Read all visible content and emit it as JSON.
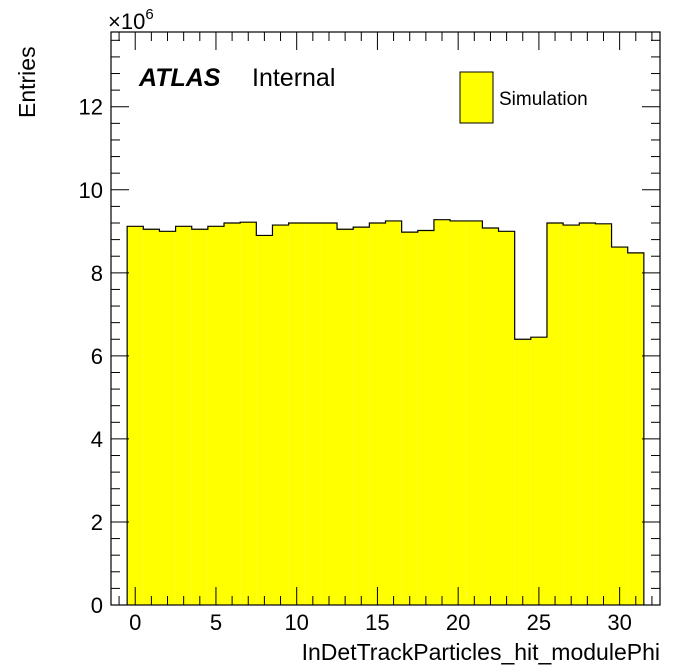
{
  "chart_data": {
    "type": "bar",
    "xlabel": "InDetTrackParticles_hit_modulePhi",
    "ylabel": "Entries",
    "y_multiplier": "×10",
    "y_multiplier_exp": "6",
    "x_ticks": [
      0,
      5,
      10,
      15,
      20,
      25,
      30
    ],
    "x_tick_labels": [
      "0",
      "5",
      "10",
      "15",
      "20",
      "25",
      "30"
    ],
    "y_ticks": [
      0,
      2,
      4,
      6,
      8,
      10,
      12
    ],
    "y_tick_labels": [
      "0",
      "2",
      "4",
      "6",
      "8",
      "10",
      "12"
    ],
    "xlim": [
      -1.5,
      32.5
    ],
    "ylim": [
      0,
      13.8
    ],
    "bin_width": 1,
    "categories": [
      0,
      1,
      2,
      3,
      4,
      5,
      6,
      7,
      8,
      9,
      10,
      11,
      12,
      13,
      14,
      15,
      16,
      17,
      18,
      19,
      20,
      21,
      22,
      23,
      24,
      25,
      26,
      27,
      28,
      29,
      30,
      31
    ],
    "series": [
      {
        "name": "Simulation",
        "values": [
          9.12,
          9.05,
          9.0,
          9.12,
          9.05,
          9.12,
          9.2,
          9.22,
          8.9,
          9.15,
          9.2,
          9.2,
          9.2,
          9.05,
          9.1,
          9.2,
          9.25,
          8.98,
          9.02,
          9.28,
          9.25,
          9.25,
          9.08,
          9.0,
          6.4,
          6.45,
          9.2,
          9.15,
          9.2,
          9.18,
          8.62,
          8.48
        ]
      }
    ],
    "fill_color": "#ffff00",
    "line_color": "#000000",
    "grid": false,
    "legend_position": "top-right"
  },
  "annotations": {
    "atlas_label": "ATLAS",
    "internal_label": "Internal"
  },
  "legend": {
    "entry_label": "Simulation"
  }
}
